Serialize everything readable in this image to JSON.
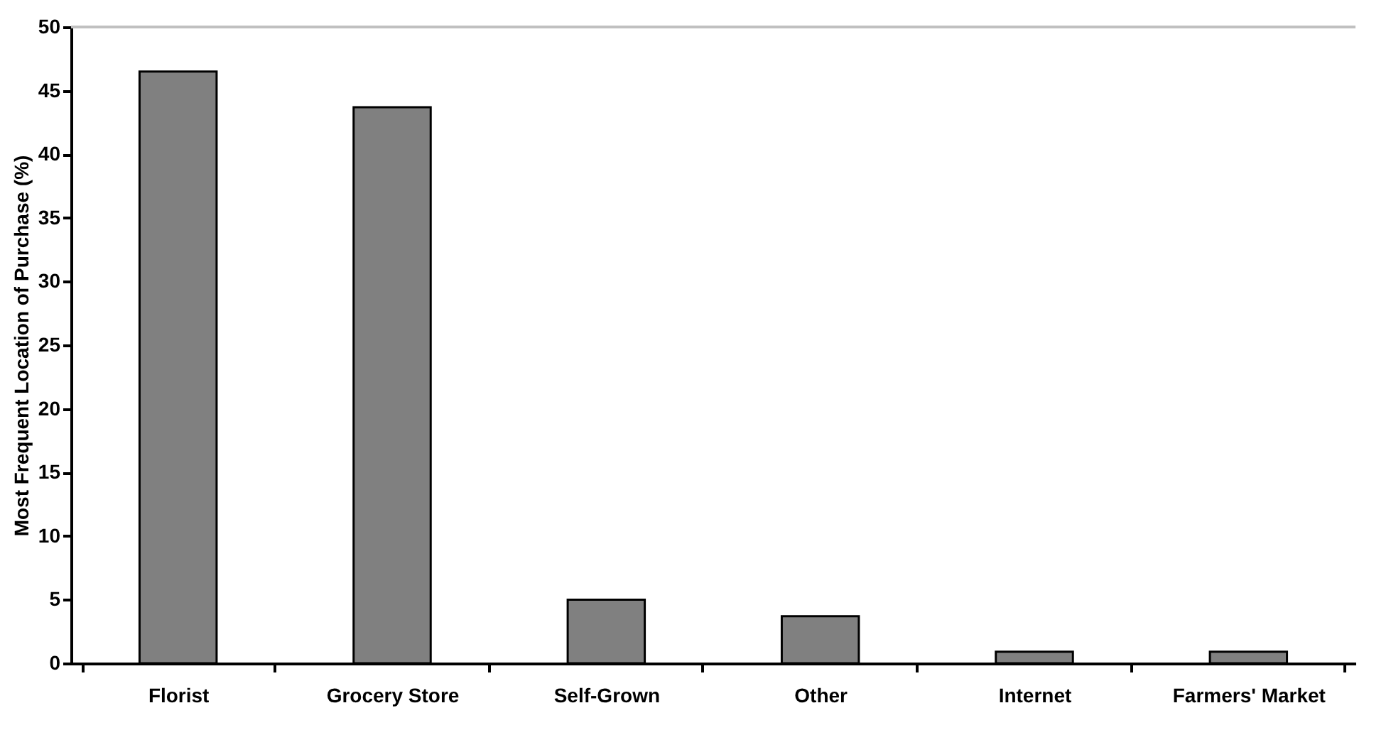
{
  "chart_data": {
    "type": "bar",
    "ylabel": "Most Frequent Location of Purchase (%)",
    "categories": [
      "Florist",
      "Grocery Store",
      "Self-Grown",
      "Other",
      "Internet",
      "Farmers' Market"
    ],
    "values": [
      46.5,
      43.7,
      5.0,
      3.7,
      0.9,
      0.9
    ],
    "color": "#808080",
    "ylim": [
      0,
      50
    ],
    "yticks": [
      0,
      5,
      10,
      15,
      20,
      25,
      30,
      35,
      40,
      45,
      50
    ]
  }
}
